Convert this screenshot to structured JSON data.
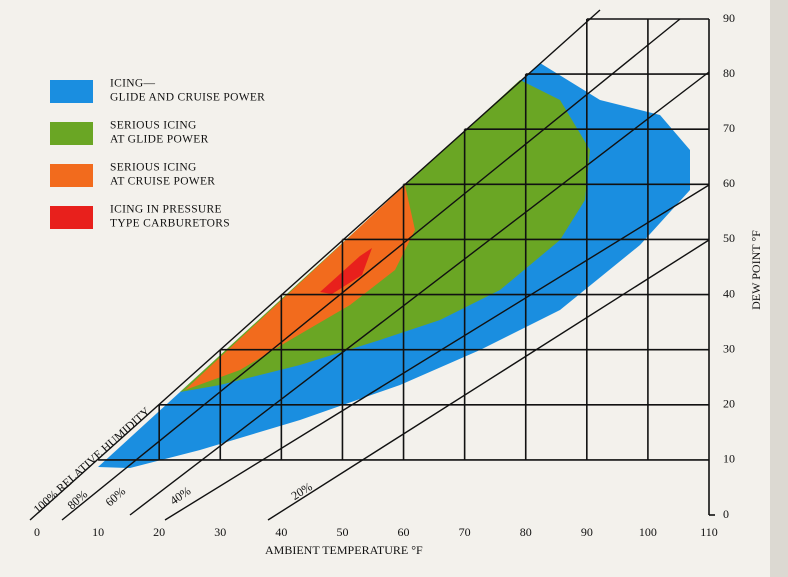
{
  "chart_data": {
    "type": "icing-chart",
    "x_label": "AMBIENT TEMPERATURE °F",
    "y_label": "DEW POINT °F",
    "xlim": [
      0,
      110
    ],
    "xticks": [
      0,
      10,
      20,
      30,
      40,
      50,
      60,
      70,
      80,
      90,
      100,
      110
    ],
    "ylim": [
      0,
      90
    ],
    "yticks": [
      0,
      10,
      20,
      30,
      40,
      50,
      60,
      70,
      80,
      90
    ],
    "legend": [
      {
        "lines": [
          "ICING—",
          "GLIDE AND CRUISE POWER"
        ],
        "color": "#1a8ee0"
      },
      {
        "lines": [
          "SERIOUS ICING",
          "AT GLIDE POWER"
        ],
        "color": "#6aa624"
      },
      {
        "lines": [
          "SERIOUS ICING",
          "AT CRUISE POWER"
        ],
        "color": "#f26b1d"
      },
      {
        "lines": [
          "ICING IN PRESSURE",
          "TYPE CARBURETORS"
        ],
        "color": "#e8201c"
      }
    ],
    "humidity_labels": [
      "100% RELATIVE HUMIDITY",
      "80%",
      "60%",
      "40%",
      "20%"
    ]
  }
}
